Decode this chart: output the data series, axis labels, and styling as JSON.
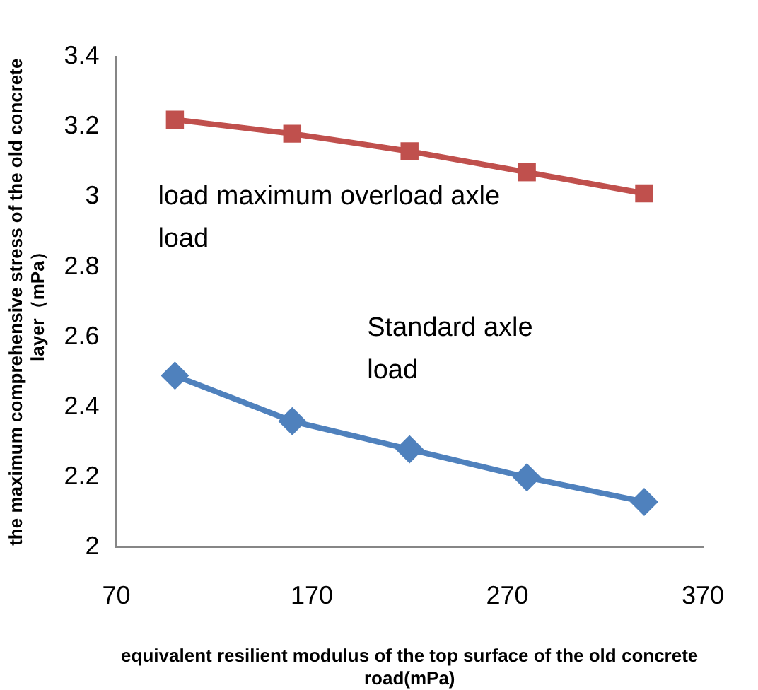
{
  "chart_data": {
    "type": "line",
    "xlabel": "equivalent resilient modulus of the top surface of the old concrete road(mPa)",
    "ylabel": "the maximum comprehensive stress of the old concrete layer（mPa）",
    "x": [
      100,
      160,
      220,
      280,
      340
    ],
    "series": [
      {
        "name": "load maximum overload axle load",
        "color": "#c0504d",
        "marker": "square",
        "values": [
          3.22,
          3.18,
          3.13,
          3.07,
          3.01
        ]
      },
      {
        "name": "Standard axle load",
        "color": "#4f81bd",
        "marker": "diamond",
        "values": [
          2.49,
          2.36,
          2.28,
          2.2,
          2.13
        ]
      }
    ],
    "xlim": [
      70,
      370
    ],
    "xticks": [
      70,
      170,
      270,
      370
    ],
    "ylim": [
      2,
      3.4
    ],
    "yticks": [
      2,
      2.2,
      2.4,
      2.6,
      2.8,
      3,
      3.2,
      3.4
    ],
    "grid": false,
    "legend": false
  }
}
